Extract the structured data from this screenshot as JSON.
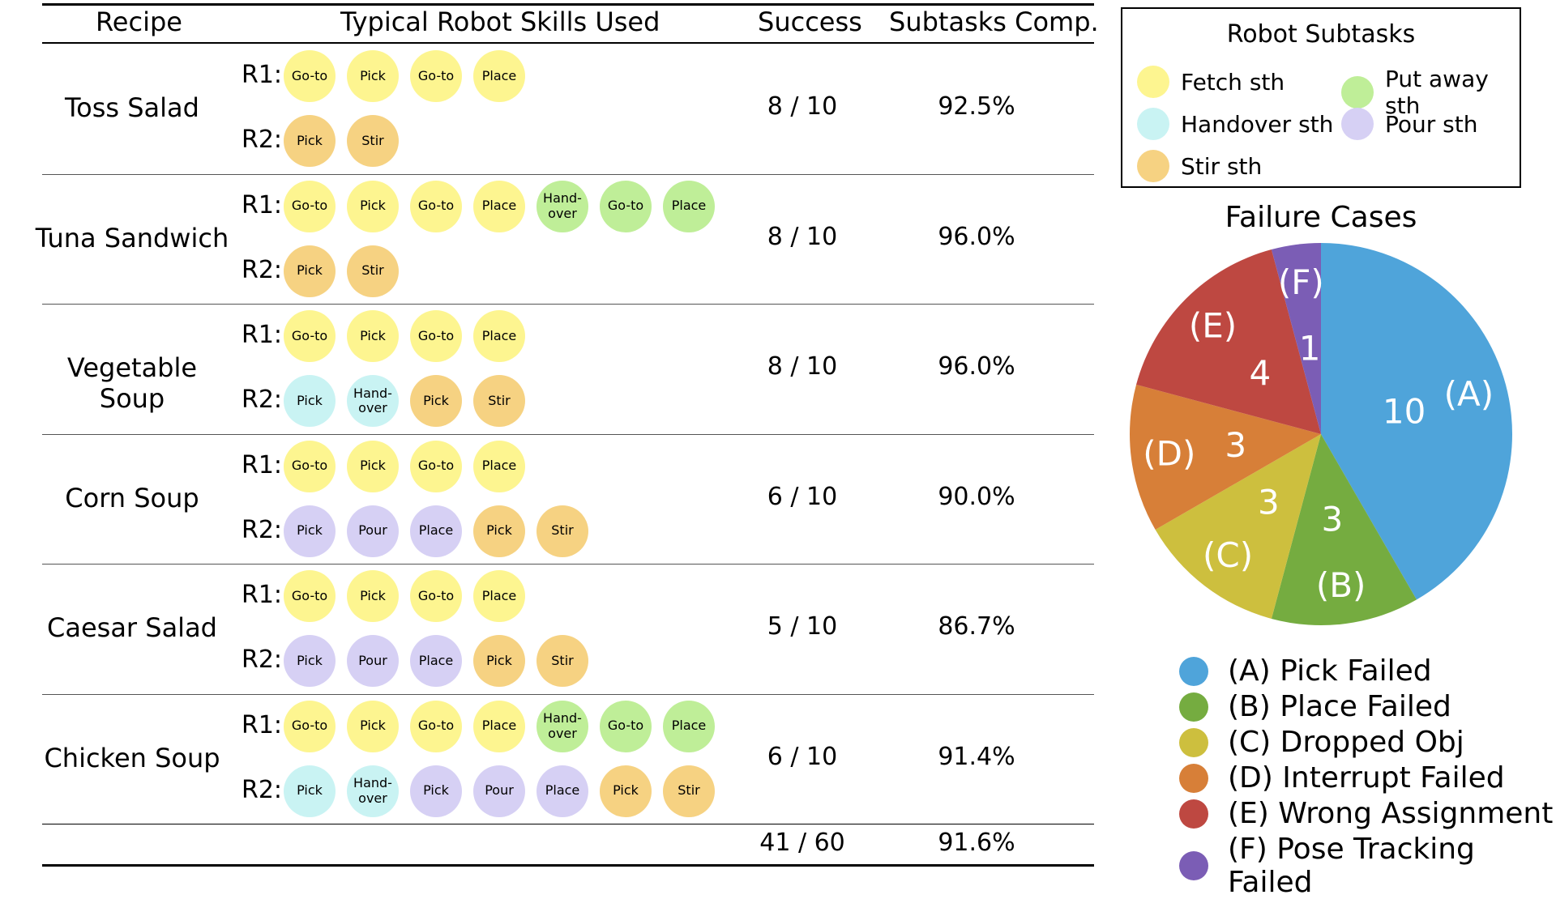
{
  "table": {
    "headers": {
      "recipe": "Recipe",
      "skills": "Typical Robot Skills Used",
      "success": "Success",
      "subtasks": "Subtasks Comp."
    },
    "rows": [
      {
        "recipe": "Toss Salad",
        "r1_label": "R1:",
        "r2_label": "R2:",
        "r1": [
          [
            "Go-to",
            "fetch"
          ],
          [
            "Pick",
            "fetch"
          ],
          [
            "Go-to",
            "fetch"
          ],
          [
            "Place",
            "fetch"
          ]
        ],
        "r2": [
          [
            "Pick",
            "stir"
          ],
          [
            "Stir",
            "stir"
          ]
        ],
        "success": "8  /  10",
        "subtasks": "92.5%"
      },
      {
        "recipe": "Tuna Sandwich",
        "r1_label": "R1:",
        "r2_label": "R2:",
        "r1": [
          [
            "Go-to",
            "fetch"
          ],
          [
            "Pick",
            "fetch"
          ],
          [
            "Go-to",
            "fetch"
          ],
          [
            "Place",
            "fetch"
          ],
          [
            "Hand-\nover",
            "putaway"
          ],
          [
            "Go-to",
            "putaway"
          ],
          [
            "Place",
            "putaway"
          ]
        ],
        "r2": [
          [
            "Pick",
            "stir"
          ],
          [
            "Stir",
            "stir"
          ]
        ],
        "success": "8  /  10",
        "subtasks": "96.0%"
      },
      {
        "recipe": "Vegetable Soup",
        "r1_label": "R1:",
        "r2_label": "R2:",
        "r1": [
          [
            "Go-to",
            "fetch"
          ],
          [
            "Pick",
            "fetch"
          ],
          [
            "Go-to",
            "fetch"
          ],
          [
            "Place",
            "fetch"
          ]
        ],
        "r2": [
          [
            "Pick",
            "handover"
          ],
          [
            "Hand-\nover",
            "handover"
          ],
          [
            "Pick",
            "stir"
          ],
          [
            "Stir",
            "stir"
          ]
        ],
        "success": "8  /  10",
        "subtasks": "96.0%"
      },
      {
        "recipe": "Corn Soup",
        "r1_label": "R1:",
        "r2_label": "R2:",
        "r1": [
          [
            "Go-to",
            "fetch"
          ],
          [
            "Pick",
            "fetch"
          ],
          [
            "Go-to",
            "fetch"
          ],
          [
            "Place",
            "fetch"
          ]
        ],
        "r2": [
          [
            "Pick",
            "pour"
          ],
          [
            "Pour",
            "pour"
          ],
          [
            "Place",
            "pour"
          ],
          [
            "Pick",
            "stir"
          ],
          [
            "Stir",
            "stir"
          ]
        ],
        "success": "6  /  10",
        "subtasks": "90.0%"
      },
      {
        "recipe": "Caesar Salad",
        "r1_label": "R1:",
        "r2_label": "R2:",
        "r1": [
          [
            "Go-to",
            "fetch"
          ],
          [
            "Pick",
            "fetch"
          ],
          [
            "Go-to",
            "fetch"
          ],
          [
            "Place",
            "fetch"
          ]
        ],
        "r2": [
          [
            "Pick",
            "pour"
          ],
          [
            "Pour",
            "pour"
          ],
          [
            "Place",
            "pour"
          ],
          [
            "Pick",
            "stir"
          ],
          [
            "Stir",
            "stir"
          ]
        ],
        "success": "5  /  10",
        "subtasks": "86.7%"
      },
      {
        "recipe": "Chicken Soup",
        "r1_label": "R1:",
        "r2_label": "R2:",
        "r1": [
          [
            "Go-to",
            "fetch"
          ],
          [
            "Pick",
            "fetch"
          ],
          [
            "Go-to",
            "fetch"
          ],
          [
            "Place",
            "fetch"
          ],
          [
            "Hand-\nover",
            "putaway"
          ],
          [
            "Go-to",
            "putaway"
          ],
          [
            "Place",
            "putaway"
          ]
        ],
        "r2": [
          [
            "Pick",
            "handover"
          ],
          [
            "Hand-\nover",
            "handover"
          ],
          [
            "Pick",
            "pour"
          ],
          [
            "Pour",
            "pour"
          ],
          [
            "Place",
            "pour"
          ],
          [
            "Pick",
            "stir"
          ],
          [
            "Stir",
            "stir"
          ]
        ],
        "success": "6  /  10",
        "subtasks": "91.4%"
      }
    ],
    "total": {
      "success": "41  /  60",
      "subtasks": "91.6%"
    }
  },
  "subtask_legend": {
    "title": "Robot Subtasks",
    "items": [
      {
        "key": "fetch",
        "label": "Fetch sth",
        "color": "#fdf590"
      },
      {
        "key": "putaway",
        "label": "Put away sth",
        "color": "#bfee98"
      },
      {
        "key": "handover",
        "label": "Handover sth",
        "color": "#c9f3f3"
      },
      {
        "key": "pour",
        "label": "Pour sth",
        "color": "#d6d0f4"
      },
      {
        "key": "stir",
        "label": "Stir sth",
        "color": "#f6d282"
      }
    ]
  },
  "chart_data": {
    "type": "pie",
    "title": "Failure Cases",
    "slices": [
      {
        "tag": "(A)",
        "label": "(A) Pick Failed",
        "value": 10,
        "color": "#4fa4da"
      },
      {
        "tag": "(B)",
        "label": "(B) Place Failed",
        "value": 3,
        "color": "#75ac40"
      },
      {
        "tag": "(C)",
        "label": "(C) Dropped Obj",
        "value": 3,
        "color": "#cdbf3e"
      },
      {
        "tag": "(D)",
        "label": "(D) Interrupt Failed",
        "value": 3,
        "color": "#d77f38"
      },
      {
        "tag": "(E)",
        "label": "(E) Wrong Assignment",
        "value": 4,
        "color": "#be4841"
      },
      {
        "tag": "(F)",
        "label": "(F) Pose Tracking Failed",
        "value": 1,
        "color": "#7b5db5"
      }
    ],
    "legend_placement": "bottom"
  }
}
